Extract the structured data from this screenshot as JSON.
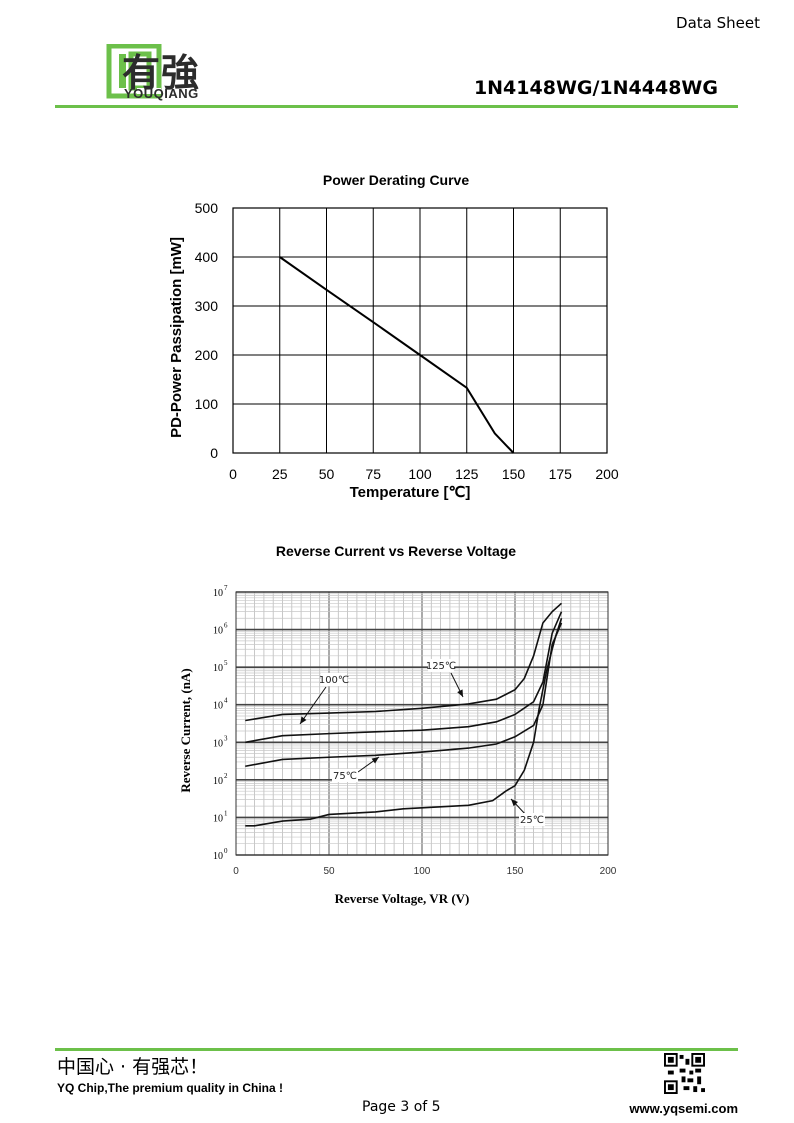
{
  "header": {
    "doc_type": "Data Sheet",
    "brand_cn": "有強",
    "brand_en": "YOUQIANG",
    "part_number": "1N4148WG/1N4448WG",
    "accent_color": "#6cc04a"
  },
  "footer": {
    "slogan_cn": "中国心 · 有强芯！",
    "slogan_en": "YQ Chip,The premium quality in China !",
    "page": "Page 3 of 5",
    "website": "www.yqsemi.com"
  },
  "chart_data": [
    {
      "type": "line",
      "title": "Power Derating Curve",
      "xlabel": "Temperature [℃]",
      "ylabel": "PD-Power Passipation [mW]",
      "xlim": [
        0,
        200
      ],
      "ylim": [
        0,
        500
      ],
      "xticks": [
        "0",
        "25",
        "50",
        "75",
        "100",
        "125",
        "150",
        "175",
        "200"
      ],
      "yticks": [
        "0",
        "100",
        "200",
        "300",
        "400",
        "500"
      ],
      "grid": true,
      "series": [
        {
          "x": [
            25,
            50,
            75,
            100,
            125,
            140,
            150
          ],
          "y": [
            400,
            333,
            267,
            200,
            133,
            40,
            0
          ]
        }
      ]
    },
    {
      "type": "line",
      "title": "Reverse Current vs Reverse Voltage",
      "xlabel": "Reverse Voltage, VR (V)",
      "ylabel": "Reverse Current, (nA)",
      "xlim": [
        0,
        200
      ],
      "ylim": [
        1,
        10000000
      ],
      "yscale": "log",
      "xticks": [
        "0",
        "50",
        "100",
        "150",
        "200"
      ],
      "yticks_base": "10",
      "yticks_exp": [
        "0",
        "1",
        "2",
        "3",
        "4",
        "5",
        "6",
        "7"
      ],
      "grid": true,
      "series": [
        {
          "name": "125℃",
          "x": [
            5,
            25,
            50,
            75,
            100,
            125,
            140,
            150,
            155,
            160,
            165,
            170,
            175
          ],
          "y": [
            3800,
            5500,
            6000,
            6600,
            8000,
            10500,
            14000,
            25000,
            50000,
            200000,
            1500000,
            3000000,
            5000000
          ]
        },
        {
          "name": "100℃",
          "x": [
            5,
            25,
            50,
            75,
            100,
            125,
            140,
            150,
            160,
            165,
            170,
            175
          ],
          "y": [
            1000,
            1500,
            1700,
            1900,
            2100,
            2600,
            3500,
            5500,
            12000,
            40000,
            800000,
            3000000
          ]
        },
        {
          "name": "75℃",
          "x": [
            5,
            25,
            50,
            75,
            100,
            125,
            140,
            150,
            160,
            165,
            170,
            175
          ],
          "y": [
            230,
            350,
            400,
            450,
            550,
            700,
            900,
            1400,
            2800,
            10000,
            400000,
            1500000
          ]
        },
        {
          "name": "25℃",
          "x": [
            5,
            10,
            25,
            40,
            50,
            75,
            90,
            100,
            125,
            138,
            145,
            150,
            155,
            160,
            163,
            167,
            170,
            172,
            175
          ],
          "y": [
            6,
            6,
            8,
            9,
            12,
            14,
            17,
            18,
            21,
            28,
            50,
            70,
            180,
            1000,
            8000,
            80000,
            300000,
            700000,
            2000000
          ]
        }
      ],
      "annotations": [
        "100℃",
        "125℃",
        "75℃",
        "25℃"
      ]
    }
  ]
}
